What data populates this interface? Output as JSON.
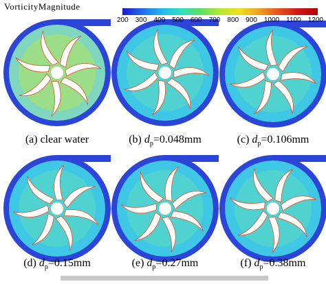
{
  "legend": {
    "title": "VorticityMagnitude",
    "ticks": [
      200,
      300,
      400,
      500,
      600,
      700,
      800,
      900,
      1000,
      1100,
      1200
    ]
  },
  "panels": [
    {
      "prefix": "(a) clear water"
    },
    {
      "prefix": "(b)",
      "symbol": "d",
      "subscript": "p",
      "value": "=0.048mm"
    },
    {
      "prefix": "(c)",
      "symbol": "d",
      "subscript": "p",
      "value": "=0.106mm"
    },
    {
      "prefix": "(d)",
      "symbol": "d",
      "subscript": "p",
      "value": "=0.15mm"
    },
    {
      "prefix": "(e)",
      "symbol": "d",
      "subscript": "p",
      "value": "=0.27mm"
    },
    {
      "prefix": "(f)",
      "symbol": "d",
      "subscript": "p",
      "value": "=0.38mm"
    }
  ]
}
